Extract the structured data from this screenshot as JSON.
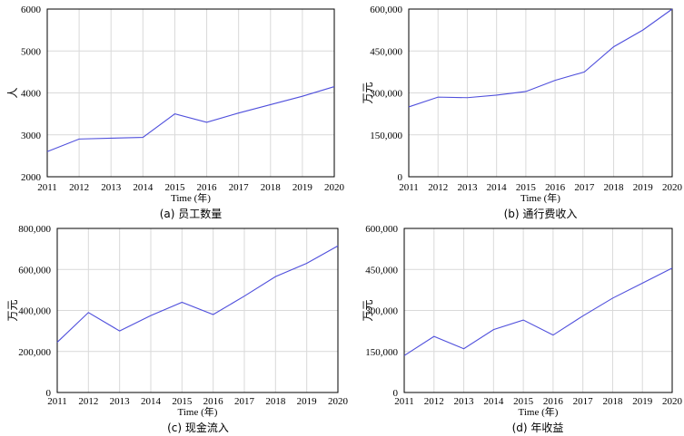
{
  "chart_data": [
    {
      "id": "a",
      "type": "line",
      "caption": "(a) 员工数量",
      "xlabel": "Time (年)",
      "ylabel": "人",
      "x": [
        2011,
        2012,
        2013,
        2014,
        2015,
        2016,
        2017,
        2018,
        2019,
        2020
      ],
      "xlim": [
        2011,
        2020
      ],
      "ylim": [
        2000,
        6000
      ],
      "yticks": [
        2000,
        3000,
        4000,
        5000,
        6000
      ],
      "ytick_labels": [
        "2000",
        "3000",
        "4000",
        "5000",
        "6000"
      ],
      "grid": true,
      "series": [
        {
          "values": [
            2600,
            2900,
            2920,
            2940,
            3500,
            3300,
            3520,
            3720,
            3920,
            4150
          ],
          "color": "#4f4fdc"
        }
      ]
    },
    {
      "id": "b",
      "type": "line",
      "caption": "(b) 通行费收入",
      "xlabel": "Time (年)",
      "ylabel": "万元",
      "x": [
        2011,
        2012,
        2013,
        2014,
        2015,
        2016,
        2017,
        2018,
        2019,
        2020
      ],
      "xlim": [
        2011,
        2020
      ],
      "ylim": [
        0,
        600000
      ],
      "yticks": [
        0,
        150000,
        300000,
        450000,
        600000
      ],
      "ytick_labels": [
        "0",
        "150,000",
        "300,000",
        "450,000",
        "600,000"
      ],
      "grid": true,
      "series": [
        {
          "values": [
            250000,
            285000,
            283000,
            292000,
            305000,
            345000,
            375000,
            465000,
            525000,
            600000
          ],
          "color": "#4f4fdc"
        }
      ]
    },
    {
      "id": "c",
      "type": "line",
      "caption": "(c) 现金流入",
      "xlabel": "Time (年)",
      "ylabel": "万元",
      "x": [
        2011,
        2012,
        2013,
        2014,
        2015,
        2016,
        2017,
        2018,
        2019,
        2020
      ],
      "xlim": [
        2011,
        2020
      ],
      "ylim": [
        0,
        800000
      ],
      "yticks": [
        0,
        200000,
        400000,
        600000,
        800000
      ],
      "ytick_labels": [
        "0",
        "200,000",
        "400,000",
        "600,000",
        "800,000"
      ],
      "grid": true,
      "series": [
        {
          "values": [
            245000,
            390000,
            300000,
            375000,
            440000,
            380000,
            470000,
            565000,
            630000,
            715000
          ],
          "color": "#4f4fdc"
        }
      ]
    },
    {
      "id": "d",
      "type": "line",
      "caption": "(d) 年收益",
      "xlabel": "Time (年)",
      "ylabel": "万元",
      "x": [
        2011,
        2012,
        2013,
        2014,
        2015,
        2016,
        2017,
        2018,
        2019,
        2020
      ],
      "xlim": [
        2011,
        2020
      ],
      "ylim": [
        0,
        600000
      ],
      "yticks": [
        0,
        150000,
        300000,
        450000,
        600000
      ],
      "ytick_labels": [
        "0",
        "150,000",
        "300,000",
        "450,000",
        "600,000"
      ],
      "grid": true,
      "series": [
        {
          "values": [
            135000,
            205000,
            160000,
            230000,
            265000,
            210000,
            280000,
            345000,
            400000,
            455000
          ],
          "color": "#4f4fdc"
        }
      ]
    }
  ]
}
